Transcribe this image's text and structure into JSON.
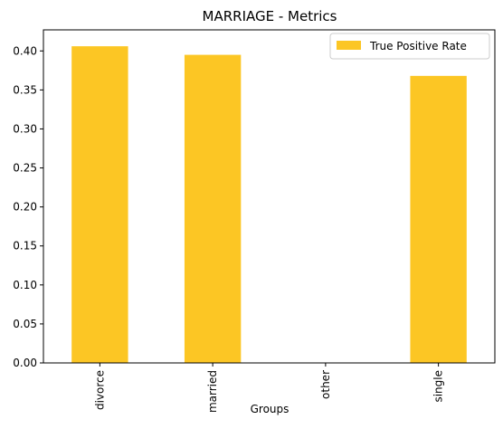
{
  "chart_data": {
    "type": "bar",
    "title": "MARRIAGE - Metrics",
    "xlabel": "Groups",
    "ylabel": "",
    "categories": [
      "divorce",
      "married",
      "other",
      "single"
    ],
    "series": [
      {
        "name": "True Positive Rate",
        "values": [
          0.406,
          0.395,
          0.0,
          0.368
        ],
        "color": "#fcc624"
      }
    ],
    "ylim": [
      0,
      0.427
    ],
    "yticks": [
      "0.00",
      "0.05",
      "0.10",
      "0.15",
      "0.20",
      "0.25",
      "0.30",
      "0.35",
      "0.40"
    ],
    "grid": false,
    "legend_position": "top-right"
  }
}
